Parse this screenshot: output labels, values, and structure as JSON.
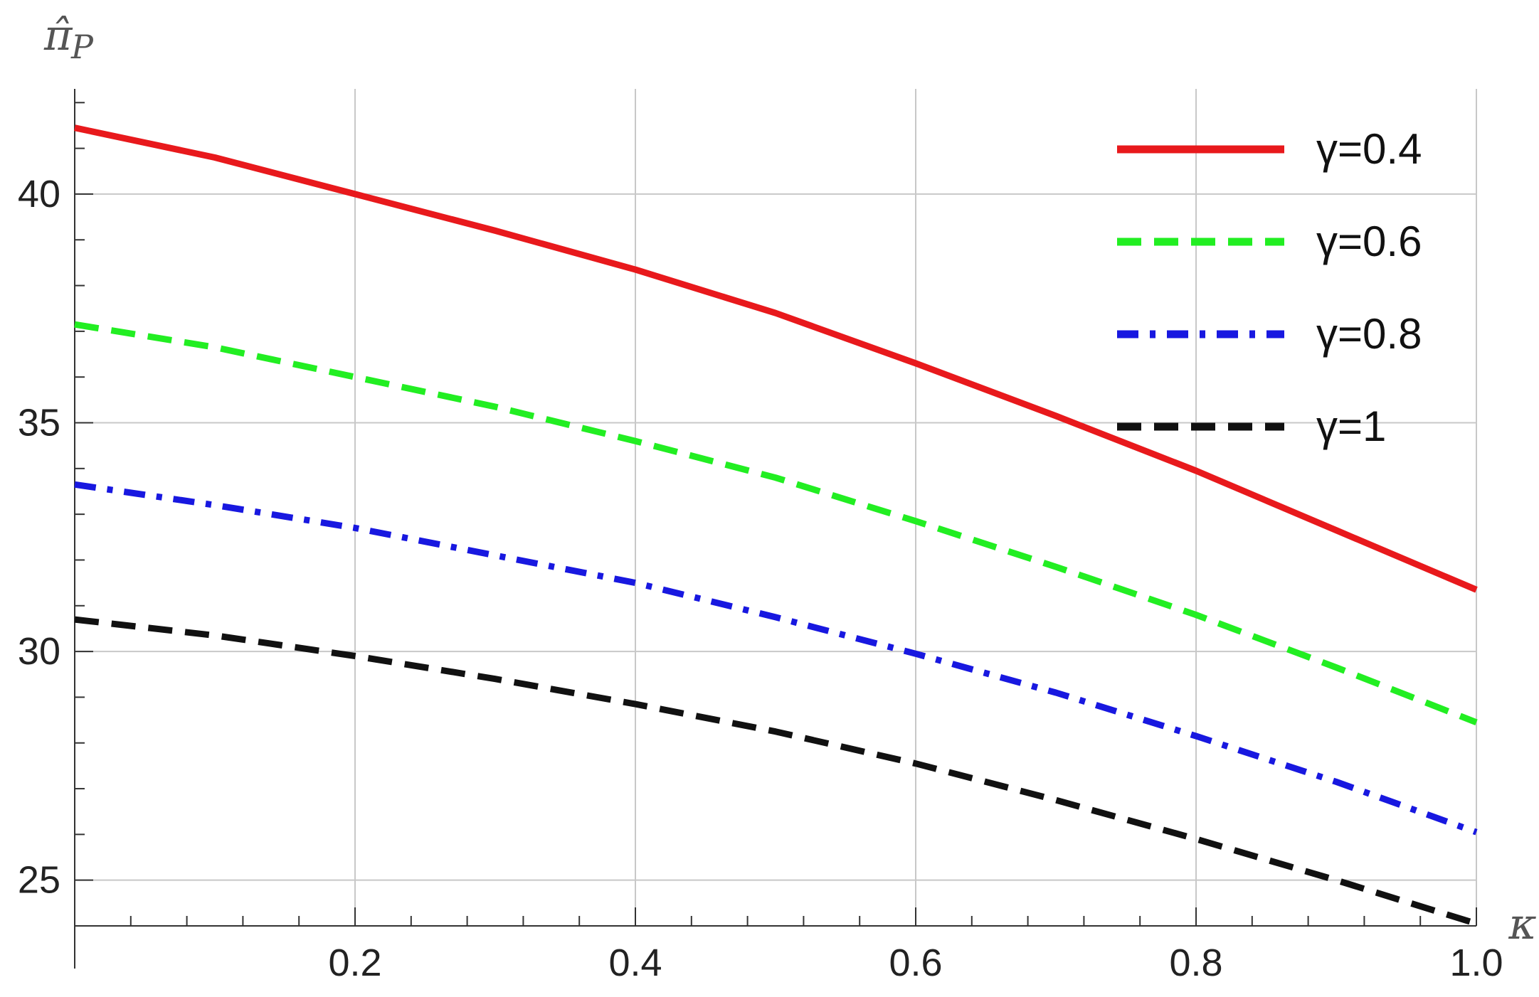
{
  "chart_data": {
    "type": "line",
    "xlabel": "κ",
    "ylabel_main": "π̂",
    "ylabel_sub": "P",
    "xlim": [
      0,
      1
    ],
    "ylim": [
      24,
      42.3
    ],
    "grid": true,
    "legend_position": "top-right",
    "x_major_ticks": [
      0.2,
      0.4,
      0.6,
      0.8,
      1.0
    ],
    "x_major_tick_labels": [
      "0.2",
      "0.4",
      "0.6",
      "0.8",
      "1.0"
    ],
    "y_major_ticks": [
      25,
      30,
      35,
      40
    ],
    "y_major_tick_labels": [
      "25",
      "30",
      "35",
      "40"
    ],
    "x": [
      0,
      0.1,
      0.2,
      0.3,
      0.4,
      0.5,
      0.6,
      0.7,
      0.8,
      0.9,
      1.0
    ],
    "series": [
      {
        "name": "γ=0.4",
        "color": "#e8191c",
        "style": "solid",
        "values": [
          41.45,
          40.8,
          40.0,
          39.2,
          38.35,
          37.4,
          36.3,
          35.15,
          33.95,
          32.65,
          31.35
        ]
      },
      {
        "name": "γ=0.6",
        "color": "#22ee22",
        "style": "dashed",
        "values": [
          37.15,
          36.65,
          36.0,
          35.35,
          34.6,
          33.8,
          32.85,
          31.85,
          30.8,
          29.65,
          28.45
        ]
      },
      {
        "name": "γ=0.8",
        "color": "#1818e0",
        "style": "dashdot",
        "values": [
          33.65,
          33.2,
          32.7,
          32.1,
          31.5,
          30.75,
          29.95,
          29.1,
          28.15,
          27.15,
          26.05
        ]
      },
      {
        "name": "γ=1",
        "color": "#111111",
        "style": "dashed",
        "values": [
          30.7,
          30.35,
          29.9,
          29.4,
          28.85,
          28.25,
          27.55,
          26.75,
          25.9,
          25.0,
          24.05
        ]
      }
    ]
  }
}
